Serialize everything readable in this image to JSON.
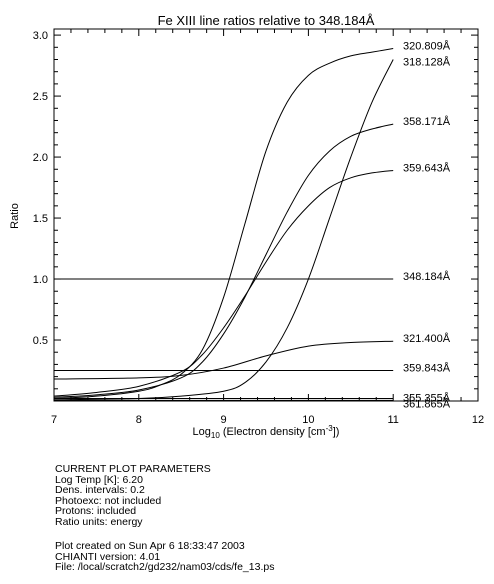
{
  "chart_data": {
    "type": "line",
    "title": "Fe XIII line ratios relative to 348.184Å",
    "xlabel_main": "Log",
    "xlabel_sub": "10",
    "xlabel_rest": " (Electron density [cm",
    "xlabel_sup": "-3",
    "xlabel_end": "])",
    "ylabel": "Ratio",
    "xlim": [
      7,
      12
    ],
    "ylim": [
      0,
      3.05
    ],
    "xticks": [
      "7",
      "8",
      "9",
      "10",
      "11",
      "12"
    ],
    "yticks": [
      "0.5",
      "1.0",
      "1.5",
      "2.0",
      "2.5",
      "3.0"
    ],
    "series": [
      {
        "name": "320.809Å",
        "x": [
          7,
          7.5,
          8,
          8.25,
          8.5,
          8.75,
          9,
          9.25,
          9.5,
          9.75,
          10,
          10.25,
          10.5,
          10.75,
          11
        ],
        "y": [
          0.02,
          0.04,
          0.08,
          0.13,
          0.22,
          0.42,
          0.85,
          1.45,
          2.05,
          2.45,
          2.67,
          2.77,
          2.83,
          2.86,
          2.89
        ]
      },
      {
        "name": "318.128Å",
        "x": [
          7,
          8,
          8.5,
          9,
          9.25,
          9.5,
          9.75,
          10,
          10.25,
          10.5,
          10.75,
          11
        ],
        "y": [
          0.01,
          0.02,
          0.04,
          0.08,
          0.15,
          0.32,
          0.6,
          1.0,
          1.5,
          2.0,
          2.45,
          2.8
        ]
      },
      {
        "name": "358.171Å",
        "x": [
          7,
          7.5,
          8,
          8.5,
          8.75,
          9,
          9.25,
          9.5,
          9.75,
          10,
          10.25,
          10.5,
          10.75,
          11
        ],
        "y": [
          0.03,
          0.05,
          0.09,
          0.19,
          0.32,
          0.55,
          0.85,
          1.2,
          1.55,
          1.85,
          2.05,
          2.17,
          2.23,
          2.27
        ]
      },
      {
        "name": "359.643Å",
        "x": [
          7,
          7.5,
          8,
          8.5,
          8.75,
          9,
          9.25,
          9.5,
          9.75,
          10,
          10.25,
          10.5,
          10.75,
          11
        ],
        "y": [
          0.04,
          0.07,
          0.12,
          0.24,
          0.38,
          0.6,
          0.86,
          1.14,
          1.4,
          1.6,
          1.75,
          1.83,
          1.87,
          1.89
        ]
      },
      {
        "name": "348.184Å",
        "x": [
          7,
          11
        ],
        "y": [
          1.0,
          1.0
        ]
      },
      {
        "name": "321.400Å",
        "x": [
          7,
          8,
          8.5,
          9,
          9.5,
          10,
          10.5,
          11
        ],
        "y": [
          0.18,
          0.19,
          0.21,
          0.27,
          0.37,
          0.45,
          0.48,
          0.49
        ]
      },
      {
        "name": "359.843Å",
        "x": [
          7,
          11
        ],
        "y": [
          0.25,
          0.25
        ]
      },
      {
        "name": "355.355Å",
        "x": [
          7,
          11
        ],
        "y": [
          0.02,
          0.02
        ]
      },
      {
        "name": "361.865Å",
        "x": [
          7,
          11
        ],
        "y": [
          0.005,
          0.005
        ]
      }
    ],
    "grid": false,
    "legend": "labels at line ends (right)"
  },
  "params": {
    "heading": "CURRENT PLOT PARAMETERS",
    "lines": [
      "Log Temp [K]:  6.20",
      "Dens. intervals: 0.2",
      "Photoexc: not included",
      "Protons: included",
      "Ratio units: energy"
    ]
  },
  "footer": {
    "lines": [
      "Plot created on Sun Apr  6 18:33:47 2003",
      "CHIANTI version: 4.01",
      "File: /local/scratch2/gd232/nam03/cds/fe_13.ps"
    ]
  }
}
